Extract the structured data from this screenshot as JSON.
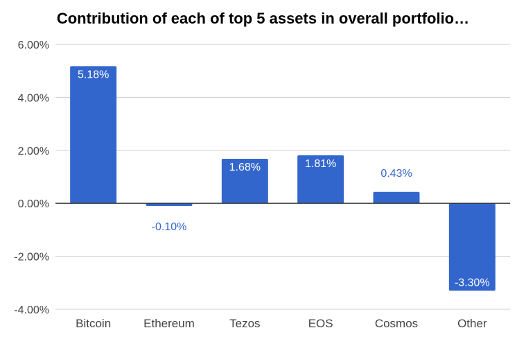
{
  "chart_data": {
    "type": "bar",
    "title": "Contribution of each of top 5 assets in overall portfolio…",
    "xlabel": "",
    "ylabel": "",
    "categories": [
      "Bitcoin",
      "Ethereum",
      "Tezos",
      "EOS",
      "Cosmos",
      "Other"
    ],
    "values": [
      5.18,
      -0.1,
      1.68,
      1.81,
      0.43,
      -3.3
    ],
    "value_labels": [
      "5.18%",
      "-0.10%",
      "1.68%",
      "1.81%",
      "0.43%",
      "-3.30%"
    ],
    "ylim": [
      -4,
      6
    ],
    "yticks": [
      6,
      4,
      2,
      0,
      -2,
      -4
    ],
    "ytick_labels": [
      "6.00%",
      "4.00%",
      "2.00%",
      "0.00%",
      "-2.00%",
      "-4.00%"
    ],
    "bar_color": "#3366cc",
    "grid": true,
    "legend": "none"
  }
}
